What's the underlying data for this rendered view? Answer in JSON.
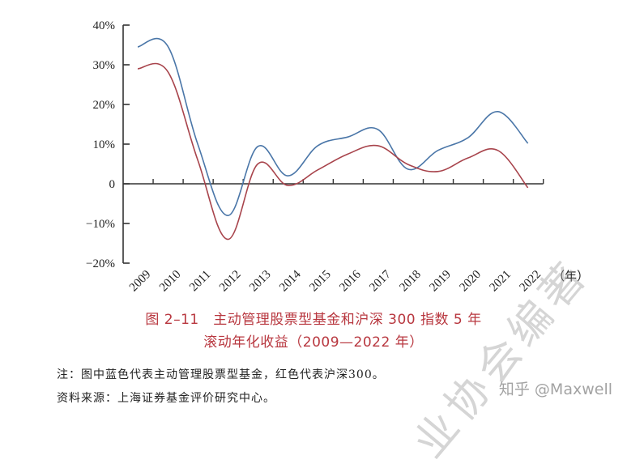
{
  "chart_data": {
    "type": "line",
    "title": "图 2–11　主动管理股票型基金和沪深 300 指数 5 年滚动年化收益（2009—2022 年）",
    "xlabel": "（年）",
    "ylabel": "",
    "ylim": [
      -20,
      40
    ],
    "yticks": [
      "40%",
      "30%",
      "20%",
      "10%",
      "0",
      "−10%",
      "−20%"
    ],
    "categories": [
      "2009",
      "2010",
      "2011",
      "2012",
      "2013",
      "2014",
      "2015",
      "2016",
      "2017",
      "2018",
      "2019",
      "2020",
      "2021",
      "2022"
    ],
    "series": [
      {
        "name": "主动管理股票型基金",
        "color": "#4a76a8",
        "values": [
          34.5,
          34.7,
          10.0,
          -8.0,
          9.4,
          2.0,
          9.6,
          11.8,
          13.7,
          3.7,
          8.4,
          11.6,
          18.2,
          10.2
        ]
      },
      {
        "name": "沪深300",
        "color": "#a8444c",
        "values": [
          29.0,
          28.3,
          6.0,
          -14.0,
          5.0,
          -0.4,
          3.5,
          7.5,
          9.6,
          4.9,
          3.1,
          6.5,
          8.4,
          -1.0
        ]
      }
    ],
    "grid": false,
    "legend": "none (described in note)"
  },
  "caption": {
    "line1": "图 2–11　主动管理股票型基金和沪深 300 指数 5 年",
    "line2": "滚动年化收益（2009—2022 年）"
  },
  "notes": {
    "note": "注：图中蓝色代表主动管理股票型基金，红色代表沪深300。",
    "source": "资料来源：上海证券基金评价研究中心。"
  },
  "watermark": {
    "diagonal": "业协会编著",
    "zhihu": "知乎 @Maxwell"
  }
}
